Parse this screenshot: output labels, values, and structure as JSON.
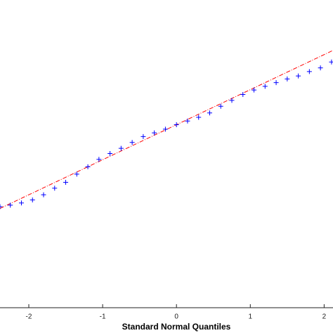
{
  "chart_data": {
    "type": "scatter",
    "xlabel": "Standard Normal Quantiles",
    "x": [
      -2.39,
      -2.25,
      -2.1,
      -1.95,
      -1.8,
      -1.65,
      -1.5,
      -1.35,
      -1.2,
      -1.05,
      -0.9,
      -0.75,
      -0.6,
      -0.45,
      -0.3,
      -0.15,
      0,
      0.15,
      0.3,
      0.45,
      0.6,
      0.75,
      0.9,
      1.05,
      1.2,
      1.35,
      1.5,
      1.65,
      1.8,
      1.95,
      2.1
    ],
    "values": [
      -1.06,
      -1.04,
      -1.01,
      -0.97,
      -0.9,
      -0.81,
      -0.73,
      -0.62,
      -0.52,
      -0.42,
      -0.34,
      -0.27,
      -0.19,
      -0.11,
      -0.06,
      -0.01,
      0.05,
      0.1,
      0.15,
      0.21,
      0.3,
      0.38,
      0.46,
      0.52,
      0.57,
      0.62,
      0.67,
      0.71,
      0.77,
      0.82,
      0.9
    ],
    "color": "#0000ff",
    "reference_line": {
      "color": "#ff0000",
      "x": [
        -2.39,
        2.12
      ],
      "values": [
        -1.085,
        1.057
      ]
    },
    "xlim": [
      -2.39,
      2.12
    ],
    "xticks": [
      -2,
      -1,
      0,
      1,
      2
    ],
    "ylim": [
      -2.43,
      1.74
    ]
  }
}
